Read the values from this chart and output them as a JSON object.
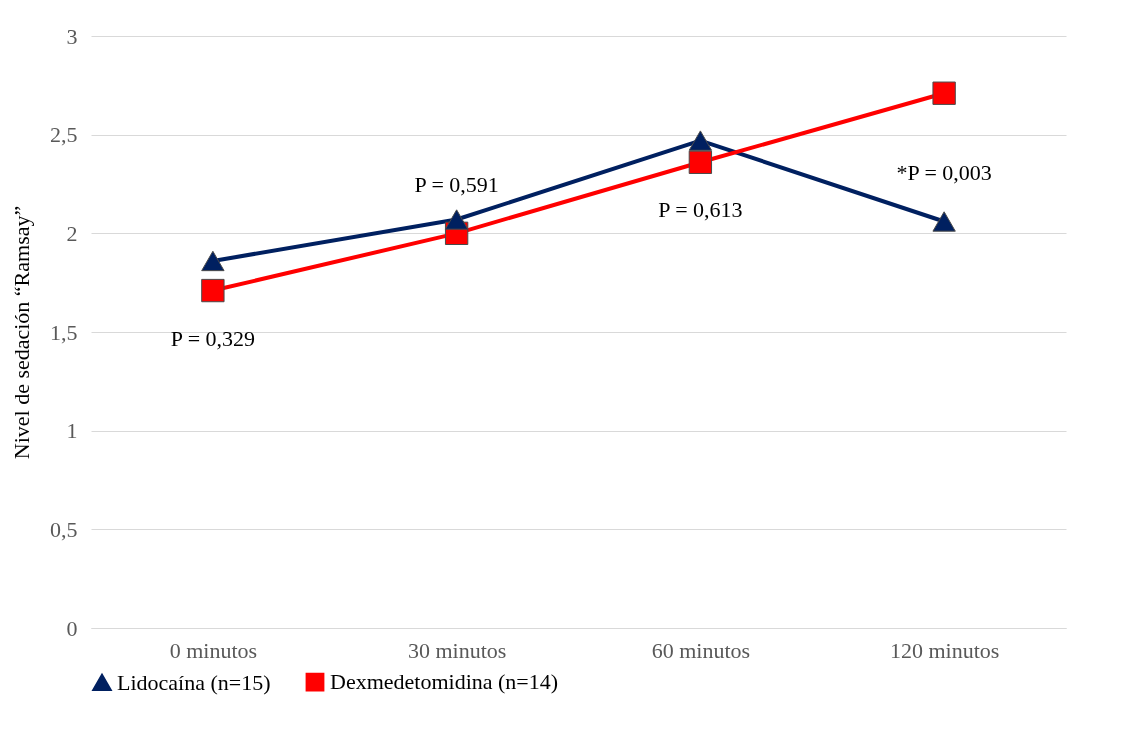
{
  "chart_data": {
    "type": "line",
    "ylabel": "Nivel de sedación “Ramsay”",
    "categories": [
      "0 minutos",
      "30 minutos",
      "60 minutos",
      "120 minutos"
    ],
    "series": [
      {
        "name": "Lidocaína (n=15)",
        "color": "#002060",
        "marker": "triangle",
        "values": [
          1.86,
          2.07,
          2.47,
          2.06
        ]
      },
      {
        "name": "Dexmedetomidina (n=14)",
        "color": "#ff0000",
        "marker": "square",
        "values": [
          1.71,
          2.0,
          2.36,
          2.71
        ]
      }
    ],
    "ylim": [
      0,
      3
    ],
    "yticks": [
      0,
      {
        "value": 0.5,
        "label": "0,5"
      },
      1,
      {
        "value": 1.5,
        "label": "1,5"
      },
      2,
      {
        "value": 2.5,
        "label": "2,5"
      },
      3
    ],
    "grid": "y",
    "legend": "bottom",
    "line_style": "solid",
    "annotations": [
      "P = 0,329",
      "P = 0,591",
      "P = 0,613",
      "*P = 0,003"
    ]
  }
}
